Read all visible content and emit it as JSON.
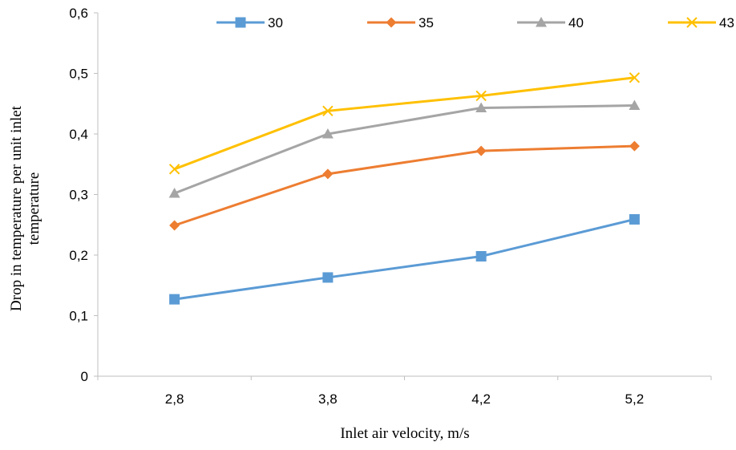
{
  "chart_data": {
    "type": "line",
    "title": "",
    "xlabel": "Inlet air velocity, m/s",
    "ylabel_lines": [
      "Drop in temperature per unit inlet",
      "temperature"
    ],
    "categories": [
      "2,8",
      "3,8",
      "4,2",
      "5,2"
    ],
    "ylim": [
      0,
      0.6
    ],
    "yticks": [
      0,
      0.1,
      0.2,
      0.3,
      0.4,
      0.5,
      0.6
    ],
    "ytick_labels": [
      "0",
      "0,1",
      "0,2",
      "0,3",
      "0,4",
      "0,5",
      "0,6"
    ],
    "grid": false,
    "legend_position": "top",
    "series": [
      {
        "name": "30",
        "values": [
          0.127,
          0.163,
          0.198,
          0.259
        ],
        "color": "#5B9BD5",
        "marker": "square"
      },
      {
        "name": "35",
        "values": [
          0.249,
          0.334,
          0.372,
          0.38
        ],
        "color": "#ED7D31",
        "marker": "diamond"
      },
      {
        "name": "40",
        "values": [
          0.302,
          0.4,
          0.443,
          0.447
        ],
        "color": "#A5A5A5",
        "marker": "triangle"
      },
      {
        "name": "43",
        "values": [
          0.342,
          0.438,
          0.463,
          0.493
        ],
        "color": "#FFC000",
        "marker": "x"
      }
    ]
  }
}
